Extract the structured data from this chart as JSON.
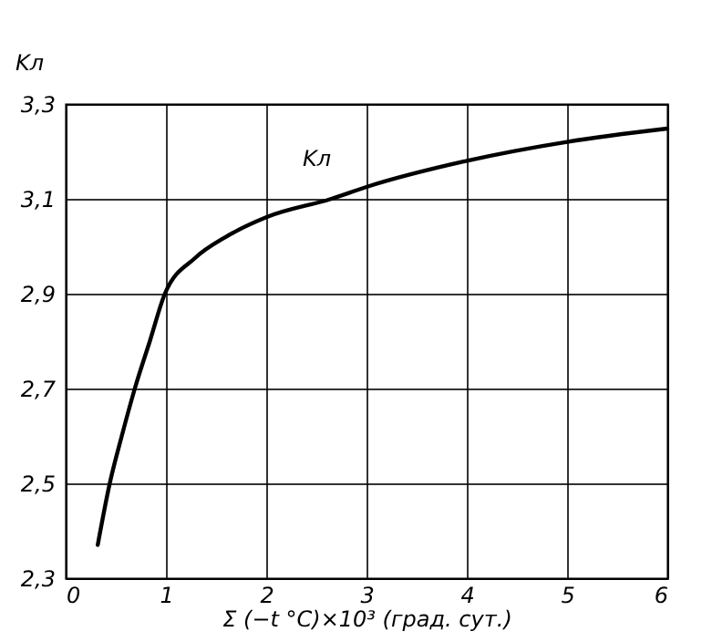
{
  "chart_data": {
    "type": "line",
    "xlabel": "Σ (−t °C)×10³ (град. сут.)",
    "ylabel": "Kл",
    "x": [
      0.32,
      0.44,
      0.56,
      0.69,
      0.84,
      0.99,
      1.29,
      1.6,
      2.0,
      2.65,
      3.0,
      4.0,
      5.0,
      6.0
    ],
    "series": [
      {
        "color": "#000000",
        "values": [
          2.37,
          2.5,
          2.6,
          2.7,
          2.8,
          2.9,
          2.975,
          3.02,
          3.061,
          3.1,
          3.125,
          3.18,
          3.22,
          3.248
        ]
      }
    ],
    "xlim": [
      0,
      6
    ],
    "xticks": [
      0,
      1,
      2,
      3,
      4,
      5,
      6
    ],
    "ylim": [
      2.3,
      3.3
    ],
    "yticks": [
      {
        "value": 2.3,
        "label": "2,3"
      },
      {
        "value": 2.5,
        "label": "2,5"
      },
      {
        "value": 2.7,
        "label": "2,7"
      },
      {
        "value": 2.9,
        "label": "2,9"
      },
      {
        "value": 3.1,
        "label": "3,1"
      },
      {
        "value": 3.3,
        "label": "3,3"
      }
    ],
    "annotations": [
      {
        "text": "Kл",
        "x": 2.65,
        "y": 3.1
      }
    ],
    "grid": true,
    "marker": "none",
    "line_style": "solid"
  }
}
